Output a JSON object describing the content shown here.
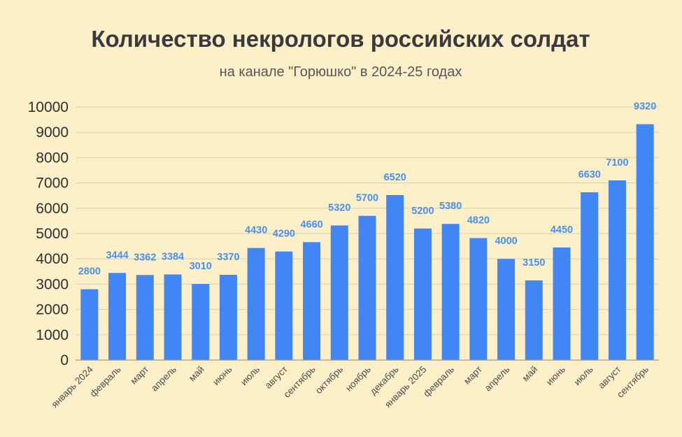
{
  "chart_data": {
    "type": "bar",
    "title": "Количество некрологов российских солдат",
    "subtitle": "на канале \"Горюшко\" в 2024-25 годах",
    "xlabel": "",
    "ylabel": "",
    "ylim": [
      0,
      10000
    ],
    "yticks": [
      "0",
      "1000",
      "2000",
      "3000",
      "4000",
      "5000",
      "6000",
      "7000",
      "8000",
      "9000",
      "10000"
    ],
    "grid": true,
    "categories": [
      "январь 2024",
      "февраль",
      "март",
      "апрель",
      "май",
      "июнь",
      "июль",
      "август",
      "сентябрь",
      "октябрь",
      "ноябрь",
      "декабрь",
      "январь 2025",
      "февраль",
      "март",
      "апрель",
      "май",
      "июнь",
      "июль",
      "август",
      "сентябрь"
    ],
    "values": [
      2800,
      3444,
      3362,
      3384,
      3010,
      3370,
      4430,
      4290,
      4660,
      5320,
      5700,
      6520,
      5200,
      5380,
      4820,
      4000,
      3150,
      4450,
      6630,
      7100,
      9320
    ],
    "data_labels": [
      "2800",
      "3444",
      "3362",
      "3384",
      "3010",
      "3370",
      "4430",
      "4290",
      "4660",
      "5320",
      "5700",
      "6520",
      "5200",
      "5380",
      "4820",
      "4000",
      "3150",
      "4450",
      "6630",
      "7100",
      "9320"
    ],
    "colors": {
      "background": "#fdf0c9",
      "bar": "#4285f4",
      "data_label": "#4a90e8",
      "title": "#3a3a3a",
      "subtitle": "#555555"
    }
  }
}
